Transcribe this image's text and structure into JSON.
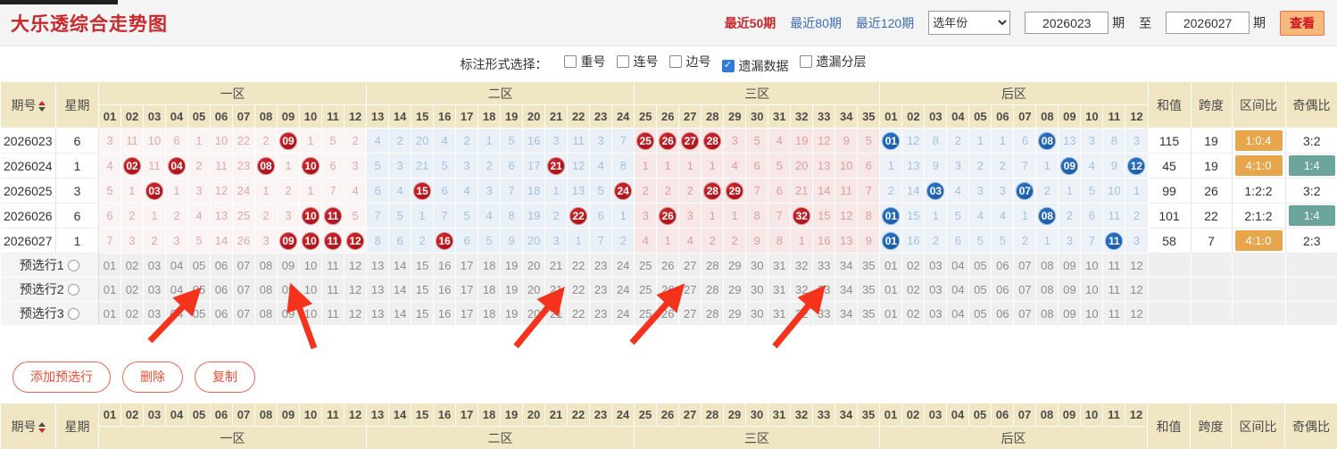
{
  "topbar": {
    "title": "大乐透综合走势图",
    "links": [
      {
        "label": "最近50期",
        "active": true
      },
      {
        "label": "最近80期",
        "active": false
      },
      {
        "label": "最近120期",
        "active": false
      }
    ],
    "year_select": "选年份",
    "from_value": "2026023",
    "to_label": "至",
    "to_value": "2026027",
    "period_label": "期",
    "view_button": "查看"
  },
  "options": {
    "label": "标注形式选择：",
    "items": [
      {
        "label": "重号",
        "checked": false
      },
      {
        "label": "连号",
        "checked": false
      },
      {
        "label": "边号",
        "checked": false
      },
      {
        "label": "遗漏数据",
        "checked": true
      },
      {
        "label": "遗漏分层",
        "checked": false
      }
    ]
  },
  "trend_table": {
    "issue_header": "期号",
    "week_header": "星期",
    "sum_header": "和值",
    "span_header": "跨度",
    "ratio_header": "区间比",
    "oddeven_header": "奇偶比",
    "zones": [
      {
        "label": "一区",
        "numbers": [
          "01",
          "02",
          "03",
          "04",
          "05",
          "06",
          "07",
          "08",
          "09",
          "10",
          "11",
          "12"
        ]
      },
      {
        "label": "二区",
        "numbers": [
          "13",
          "14",
          "15",
          "16",
          "17",
          "18",
          "19",
          "20",
          "21",
          "22",
          "23",
          "24"
        ]
      },
      {
        "label": "三区",
        "numbers": [
          "25",
          "26",
          "27",
          "28",
          "29",
          "30",
          "31",
          "32",
          "33",
          "34",
          "35"
        ]
      },
      {
        "label": "后区",
        "numbers": [
          "01",
          "02",
          "03",
          "04",
          "05",
          "06",
          "07",
          "08",
          "09",
          "10",
          "11",
          "12"
        ]
      }
    ],
    "rows": [
      {
        "issue": "2026023",
        "week": "6",
        "z1": [
          "3",
          "11",
          "10",
          "6",
          "1",
          "10",
          "22",
          "2",
          "*09",
          "1",
          "5",
          "2"
        ],
        "z2": [
          "4",
          "2",
          "20",
          "4",
          "2",
          "1",
          "5",
          "16",
          "3",
          "11",
          "3",
          "7"
        ],
        "z3": [
          "*25",
          "*26",
          "*27",
          "*28",
          "3",
          "5",
          "4",
          "19",
          "12",
          "9",
          "5"
        ],
        "z4": [
          "*01",
          "12",
          "8",
          "2",
          "1",
          "1",
          "6",
          "*08",
          "13",
          "3",
          "8",
          "3"
        ],
        "sum": "115",
        "span": "19",
        "ratio": "1:0:4",
        "ratio_hl": true,
        "oe": "3:2",
        "oe_hl": false
      },
      {
        "issue": "2026024",
        "week": "1",
        "z1": [
          "4",
          "*02",
          "11",
          "*04",
          "2",
          "11",
          "23",
          "*08",
          "1",
          "*10",
          "6",
          "3"
        ],
        "z2": [
          "5",
          "3",
          "21",
          "5",
          "3",
          "2",
          "6",
          "17",
          "*21",
          "12",
          "4",
          "8"
        ],
        "z3": [
          "1",
          "1",
          "1",
          "1",
          "4",
          "6",
          "5",
          "20",
          "13",
          "10",
          "6"
        ],
        "z4": [
          "1",
          "13",
          "9",
          "3",
          "2",
          "2",
          "7",
          "1",
          "*09",
          "4",
          "9",
          "*12"
        ],
        "sum": "45",
        "span": "19",
        "ratio": "4:1:0",
        "ratio_hl": true,
        "oe": "1:4",
        "oe_hl": true
      },
      {
        "issue": "2026025",
        "week": "3",
        "z1": [
          "5",
          "1",
          "*03",
          "1",
          "3",
          "12",
          "24",
          "1",
          "2",
          "1",
          "7",
          "4"
        ],
        "z2": [
          "6",
          "4",
          "*15",
          "6",
          "4",
          "3",
          "7",
          "18",
          "1",
          "13",
          "5",
          "*24"
        ],
        "z3": [
          "2",
          "2",
          "2",
          "*28",
          "*29",
          "7",
          "6",
          "21",
          "14",
          "11",
          "7"
        ],
        "z4": [
          "2",
          "14",
          "*03",
          "4",
          "3",
          "3",
          "*07",
          "2",
          "1",
          "5",
          "10",
          "1"
        ],
        "sum": "99",
        "span": "26",
        "ratio": "1:2:2",
        "ratio_hl": false,
        "oe": "3:2",
        "oe_hl": false
      },
      {
        "issue": "2026026",
        "week": "6",
        "z1": [
          "6",
          "2",
          "1",
          "2",
          "4",
          "13",
          "25",
          "2",
          "3",
          "*10",
          "*11",
          "5"
        ],
        "z2": [
          "7",
          "5",
          "1",
          "7",
          "5",
          "4",
          "8",
          "19",
          "2",
          "*22",
          "6",
          "1"
        ],
        "z3": [
          "3",
          "*26",
          "3",
          "1",
          "1",
          "8",
          "7",
          "*32",
          "15",
          "12",
          "8"
        ],
        "z4": [
          "*01",
          "15",
          "1",
          "5",
          "4",
          "4",
          "1",
          "*08",
          "2",
          "6",
          "11",
          "2"
        ],
        "sum": "101",
        "span": "22",
        "ratio": "2:1:2",
        "ratio_hl": false,
        "oe": "1:4",
        "oe_hl": true
      },
      {
        "issue": "2026027",
        "week": "1",
        "z1": [
          "7",
          "3",
          "2",
          "3",
          "5",
          "14",
          "26",
          "3",
          "*09",
          "*10",
          "*11",
          "*12"
        ],
        "z2": [
          "8",
          "6",
          "2",
          "*16",
          "6",
          "5",
          "9",
          "20",
          "3",
          "1",
          "7",
          "2"
        ],
        "z3": [
          "4",
          "1",
          "4",
          "2",
          "2",
          "9",
          "8",
          "1",
          "16",
          "13",
          "9"
        ],
        "z4": [
          "*01",
          "16",
          "2",
          "6",
          "5",
          "5",
          "2",
          "1",
          "3",
          "7",
          "*11",
          "3"
        ],
        "sum": "58",
        "span": "7",
        "ratio": "4:1:0",
        "ratio_hl": true,
        "oe": "2:3",
        "oe_hl": false
      }
    ]
  },
  "preselect": {
    "row_labels": [
      "预选行1",
      "预选行2",
      "预选行3"
    ]
  },
  "action_buttons": [
    "添加预选行",
    "删除",
    "复制"
  ],
  "colors": {
    "title_red": "#c9282d",
    "link_blue": "#3c6cb4",
    "header_beige": "#f1e6c4",
    "ball_red": "#9e0a10",
    "ball_blue": "#14529c",
    "ratio_highlight_orange": "#e7a64c",
    "oddeven_highlight_teal": "#6ba49a",
    "arrow_red": "#f5331c",
    "checkbox_blue": "#2e7bdd"
  }
}
